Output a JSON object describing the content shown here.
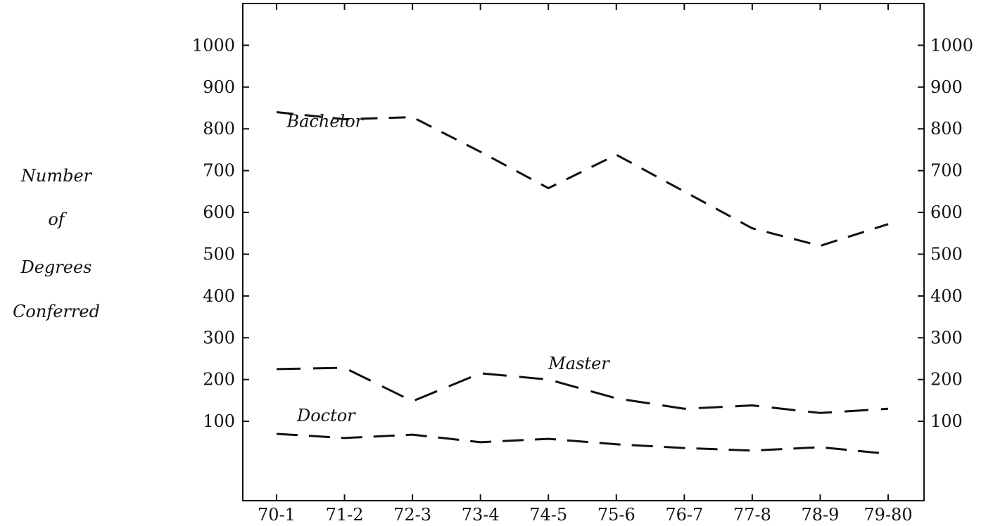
{
  "chart_data": {
    "type": "line",
    "title": "",
    "xlabel": "",
    "ylabel_lines": [
      "Number",
      "of",
      "Degrees",
      "Conferred"
    ],
    "categories": [
      "70-1",
      "71-2",
      "72-3",
      "73-4",
      "74-5",
      "75-6",
      "76-7",
      "77-8",
      "78-9",
      "79-80"
    ],
    "yticks": [
      100,
      200,
      300,
      400,
      500,
      600,
      700,
      800,
      900,
      1000
    ],
    "ytick_labels": [
      "100",
      "200",
      "300",
      "400",
      "500",
      "600",
      "700",
      "800",
      "900",
      "1000"
    ],
    "ylim": [
      -90,
      1100
    ],
    "right_axis": true,
    "grid": false,
    "line_style": "dashed",
    "series": [
      {
        "name": "Bachelor",
        "values": [
          840,
          823,
          828,
          745,
          658,
          738,
          650,
          562,
          520,
          572
        ]
      },
      {
        "name": "Master",
        "values": [
          225,
          228,
          148,
          215,
          200,
          155,
          130,
          138,
          120,
          130
        ]
      },
      {
        "name": "Doctor",
        "values": [
          70,
          60,
          68,
          50,
          58,
          45,
          36,
          30,
          38,
          22
        ]
      }
    ]
  }
}
